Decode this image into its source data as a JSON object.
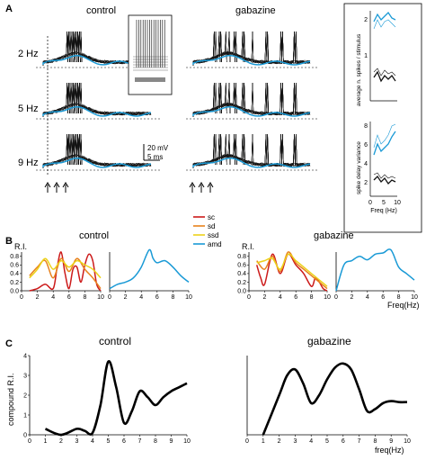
{
  "panels": {
    "A": {
      "letter": "A",
      "conditions": [
        "control",
        "gabazine"
      ],
      "rows": [
        "2 Hz",
        "5 Hz",
        "9 Hz"
      ],
      "scalebar": {
        "voltage": "20 mV",
        "time": "5 ms"
      },
      "inset_right": {
        "top_ylabel": "average n. spikes / stimulus",
        "bottom_ylabel": "spike delay variance",
        "xlabel": "Freq (Hz)",
        "top_yticks": [
          "2",
          "1"
        ],
        "bottom_yticks": [
          "8",
          "6",
          "4",
          "2"
        ],
        "xticks": [
          "0",
          "5",
          "10"
        ],
        "colors": {
          "control": "#111111",
          "gabazine": "#1a9ad6"
        }
      }
    },
    "B": {
      "letter": "B",
      "titles": [
        "control",
        "gabazine"
      ],
      "ylabel": "R.I.",
      "xlabel": "Freq(Hz)",
      "yticks": [
        "0.8",
        "0.6",
        "0.4",
        "0.2",
        "0.0"
      ],
      "xticks": [
        "0",
        "2",
        "4",
        "6",
        "8",
        "10"
      ],
      "legend": [
        {
          "label": "sc",
          "color": "#cc1a1a"
        },
        {
          "label": "sd",
          "color": "#e8821c"
        },
        {
          "label": "ssd",
          "color": "#ecd21a"
        },
        {
          "label": "amd",
          "color": "#1a9ad6"
        }
      ]
    },
    "C": {
      "letter": "C",
      "titles": [
        "control",
        "gabazine"
      ],
      "ylabel": "compound R.I.",
      "xlabel": "freq(Hz)",
      "yticks": [
        "4",
        "3",
        "2",
        "1",
        "0"
      ],
      "xticks": [
        "0",
        "1",
        "2",
        "3",
        "4",
        "5",
        "6",
        "7",
        "8",
        "9",
        "10"
      ]
    }
  },
  "chart_data": [
    {
      "type": "line",
      "title": "control",
      "ylabel": "R.I.",
      "xlabel": "",
      "xlim": [
        0,
        10
      ],
      "ylim": [
        0,
        0.9
      ],
      "series": [
        {
          "name": "sc",
          "x": [
            1,
            2,
            3,
            4,
            4.5,
            5,
            5.5,
            6,
            6.5,
            7,
            7.5,
            8,
            8.5,
            9,
            9.5,
            10
          ],
          "y": [
            0.0,
            0.05,
            0.15,
            0.05,
            0.55,
            0.9,
            0.4,
            0.05,
            0.5,
            0.55,
            0.2,
            0.6,
            0.85,
            0.7,
            0.15,
            0.0
          ]
        },
        {
          "name": "sd",
          "x": [
            1,
            2,
            3,
            4,
            5,
            6,
            7,
            8,
            9,
            10
          ],
          "y": [
            0.35,
            0.55,
            0.7,
            0.3,
            0.75,
            0.45,
            0.75,
            0.5,
            0.3,
            0.05
          ]
        },
        {
          "name": "ssd",
          "x": [
            1,
            2,
            3,
            4,
            5,
            6,
            7,
            8,
            9,
            10
          ],
          "y": [
            0.3,
            0.5,
            0.75,
            0.5,
            0.7,
            0.55,
            0.7,
            0.6,
            0.5,
            0.3
          ]
        },
        {
          "name": "amd",
          "x": [
            0,
            1,
            2,
            3,
            4,
            5,
            5.5,
            6,
            7,
            8,
            9,
            10
          ],
          "y": [
            0.05,
            0.15,
            0.2,
            0.3,
            0.55,
            0.95,
            0.75,
            0.65,
            0.7,
            0.55,
            0.35,
            0.2
          ]
        }
      ]
    },
    {
      "type": "line",
      "title": "gabazine",
      "ylabel": "R.I.",
      "xlabel": "Freq(Hz)",
      "xlim": [
        0,
        10
      ],
      "ylim": [
        0,
        0.9
      ],
      "series": [
        {
          "name": "sc",
          "x": [
            1,
            1.5,
            2,
            3,
            4,
            5,
            6,
            7,
            8,
            8.5,
            9,
            9.5,
            10
          ],
          "y": [
            0.6,
            0.3,
            0.15,
            0.85,
            0.4,
            0.85,
            0.6,
            0.4,
            0.1,
            0.3,
            0.2,
            0.05,
            0.0
          ]
        },
        {
          "name": "sd",
          "x": [
            1,
            2,
            3,
            4,
            5,
            6,
            7,
            8,
            9,
            10
          ],
          "y": [
            0.7,
            0.5,
            0.8,
            0.45,
            0.9,
            0.65,
            0.5,
            0.35,
            0.2,
            0.05
          ]
        },
        {
          "name": "ssd",
          "x": [
            1,
            2,
            3,
            4,
            5,
            6,
            7,
            8,
            9,
            10
          ],
          "y": [
            0.65,
            0.7,
            0.75,
            0.5,
            0.85,
            0.7,
            0.55,
            0.4,
            0.25,
            0.1
          ]
        },
        {
          "name": "amd",
          "x": [
            0,
            1,
            2,
            3,
            4,
            5,
            6,
            7,
            8,
            9,
            10
          ],
          "y": [
            0.0,
            0.6,
            0.7,
            0.8,
            0.72,
            0.85,
            0.88,
            0.95,
            0.55,
            0.4,
            0.25
          ]
        }
      ]
    },
    {
      "type": "line",
      "title": "control",
      "ylabel": "compound R.I.",
      "xlabel": "",
      "xlim": [
        0,
        10
      ],
      "ylim": [
        0,
        4
      ],
      "series": [
        {
          "x": [
            1,
            2,
            3,
            3.5,
            4,
            4.5,
            5,
            5.5,
            6,
            6.5,
            7,
            7.5,
            8,
            8.5,
            9,
            9.5,
            10
          ],
          "y": [
            0.3,
            0.0,
            0.3,
            0.2,
            0.1,
            1.5,
            3.7,
            2.4,
            0.6,
            1.2,
            2.2,
            1.9,
            1.5,
            1.9,
            2.2,
            2.4,
            2.6
          ]
        }
      ]
    },
    {
      "type": "line",
      "title": "gabazine",
      "ylabel": "",
      "xlabel": "freq(Hz)",
      "xlim": [
        0,
        10
      ],
      "ylim": [
        0,
        4
      ],
      "series": [
        {
          "x": [
            1,
            2,
            2.5,
            3,
            3.5,
            4,
            4.5,
            5,
            5.5,
            6,
            6.5,
            7,
            7.5,
            8,
            8.5,
            9,
            9.5,
            10
          ],
          "y": [
            0.0,
            2.0,
            3.0,
            3.3,
            2.6,
            1.6,
            2.0,
            2.8,
            3.4,
            3.6,
            3.3,
            2.3,
            1.2,
            1.3,
            1.6,
            1.7,
            1.65,
            1.65
          ]
        }
      ]
    }
  ]
}
